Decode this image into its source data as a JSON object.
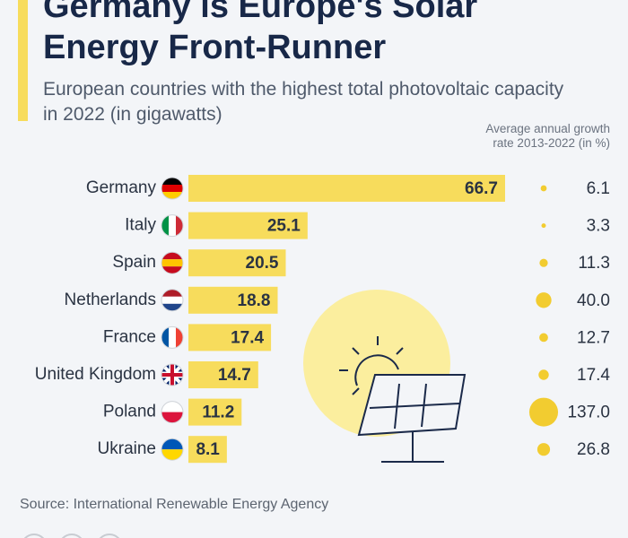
{
  "chart_data": {
    "type": "bar",
    "title": "Germany is Europe's Solar Energy Front-Runner",
    "subtitle": "European countries with the highest total photovoltaic capacity in 2022 (in gigawatts)",
    "growth_label": "Average annual growth rate 2013-2022 (in %)",
    "source": "Source: International Renewable Energy Agency",
    "categories": [
      "Germany",
      "Italy",
      "Spain",
      "Netherlands",
      "France",
      "United Kingdom",
      "Poland",
      "Ukraine"
    ],
    "values": [
      66.7,
      25.1,
      20.5,
      18.8,
      17.4,
      14.7,
      11.2,
      8.1
    ],
    "color": "#f7dc5c",
    "growth": [
      6.1,
      3.3,
      11.3,
      40.0,
      12.7,
      17.4,
      137.0,
      26.8
    ],
    "growth_labels": [
      "6.1",
      "3.3",
      "11.3",
      "40.0",
      "12.7",
      "17.4",
      "137.0",
      "26.8"
    ],
    "growth_color": "#f2cc30"
  }
}
